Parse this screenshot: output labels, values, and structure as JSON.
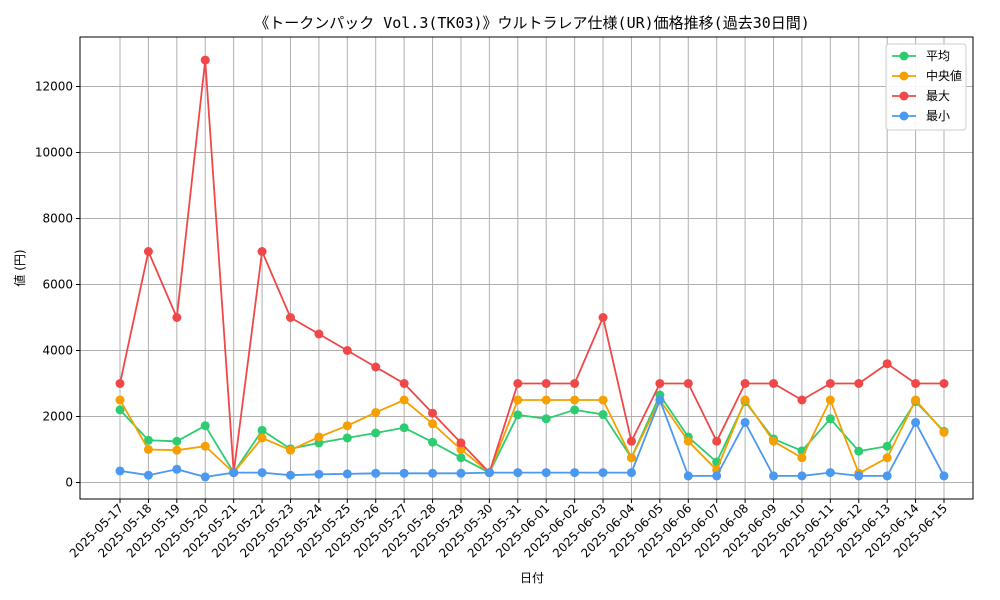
{
  "chart_data": {
    "type": "line",
    "title": "《トークンパック Vol.3(TK03)》ウルトラレア仕様(UR)価格推移(過去30日間)",
    "xlabel": "日付",
    "ylabel": "値 (円)",
    "ylim": [
      -500,
      13500
    ],
    "yticks": [
      0,
      2000,
      4000,
      6000,
      8000,
      10000,
      12000
    ],
    "grid": true,
    "legend_position": "top-right",
    "categories": [
      "2025-05-17",
      "2025-05-18",
      "2025-05-19",
      "2025-05-20",
      "2025-05-21",
      "2025-05-22",
      "2025-05-23",
      "2025-05-24",
      "2025-05-25",
      "2025-05-26",
      "2025-05-27",
      "2025-05-28",
      "2025-05-29",
      "2025-05-30",
      "2025-05-31",
      "2025-06-01",
      "2025-06-02",
      "2025-06-03",
      "2025-06-04",
      "2025-06-05",
      "2025-06-06",
      "2025-06-07",
      "2025-06-08",
      "2025-06-09",
      "2025-06-10",
      "2025-06-11",
      "2025-06-12",
      "2025-06-13",
      "2025-06-14",
      "2025-06-15"
    ],
    "series": [
      {
        "name": "平均",
        "color": "#2ecc71",
        "values": [
          2200,
          1280,
          1250,
          1720,
          300,
          1580,
          1020,
          1200,
          1350,
          1500,
          1660,
          1220,
          750,
          300,
          2050,
          1930,
          2200,
          2060,
          750,
          2650,
          1380,
          620,
          2450,
          1320,
          960,
          1930,
          950,
          1100,
          2450,
          1550
        ]
      },
      {
        "name": "中央値",
        "color": "#f5a000",
        "values": [
          2500,
          1000,
          980,
          1100,
          300,
          1350,
          980,
          1380,
          1720,
          2120,
          2500,
          1780,
          1000,
          300,
          2500,
          2500,
          2500,
          2500,
          750,
          2500,
          1250,
          380,
          2500,
          1250,
          750,
          2500,
          280,
          750,
          2500,
          1520
        ]
      },
      {
        "name": "最大",
        "color": "#f04848",
        "values": [
          3000,
          7000,
          5000,
          12800,
          300,
          7000,
          5000,
          4500,
          4000,
          3500,
          3000,
          2100,
          1200,
          300,
          3000,
          3000,
          3000,
          5000,
          1250,
          3000,
          3000,
          1250,
          3000,
          3000,
          2500,
          3000,
          3000,
          3600,
          3000,
          3000
        ]
      },
      {
        "name": "最小",
        "color": "#4a98f0",
        "values": [
          350,
          220,
          400,
          170,
          300,
          300,
          220,
          250,
          260,
          280,
          280,
          280,
          280,
          300,
          300,
          300,
          300,
          300,
          300,
          2500,
          200,
          200,
          1820,
          200,
          200,
          300,
          200,
          200,
          1820,
          200
        ]
      }
    ]
  }
}
